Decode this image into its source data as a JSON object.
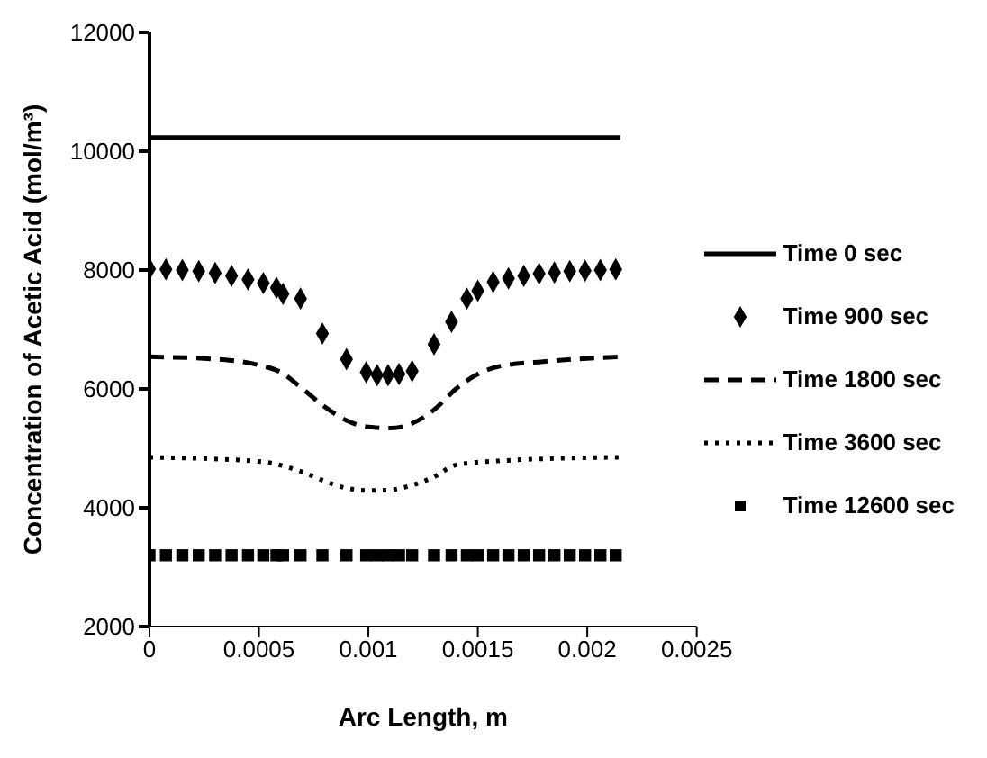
{
  "chart_data": {
    "type": "line",
    "xlabel": "Arc Length, m",
    "ylabel": "Concentration of Acetic Acid (mol/m³)",
    "xlim": [
      0,
      0.0025
    ],
    "xticks": [
      0,
      0.0005,
      0.001,
      0.0015,
      0.002,
      0.0025
    ],
    "ylim": [
      2000,
      12000
    ],
    "yticks": [
      2000,
      4000,
      6000,
      8000,
      10000,
      12000
    ],
    "grid": false,
    "legend": "right",
    "series": [
      {
        "name": "Time 0 sec",
        "line_style": "solid",
        "marker": "none",
        "color": "#000000",
        "x": [
          0,
          0.00215
        ],
        "values": [
          10230,
          10230
        ]
      },
      {
        "name": "Time 900 sec",
        "type": "scatter",
        "marker": "diamond",
        "color": "#000000",
        "x": [
          0,
          7.5e-05,
          0.00015,
          0.000225,
          0.0003,
          0.000375,
          0.00045,
          0.00052,
          0.00058,
          0.00061,
          0.00069,
          0.00079,
          0.0009,
          0.00099,
          0.00104,
          0.00109,
          0.00114,
          0.0012,
          0.0013,
          0.00138,
          0.00145,
          0.0015,
          0.00157,
          0.00164,
          0.00171,
          0.00178,
          0.00185,
          0.00192,
          0.00199,
          0.00206,
          0.00213
        ],
        "values": [
          8020,
          8010,
          8000,
          7980,
          7950,
          7900,
          7840,
          7780,
          7700,
          7600,
          7520,
          6930,
          6500,
          6280,
          6230,
          6230,
          6250,
          6300,
          6750,
          7130,
          7520,
          7650,
          7800,
          7860,
          7900,
          7940,
          7960,
          7980,
          7990,
          8000,
          8010
        ]
      },
      {
        "name": "Time 1800 sec",
        "line_style": "dashed",
        "marker": "none",
        "color": "#000000",
        "x": [
          0,
          0.0003,
          0.0005,
          0.0006,
          0.0007,
          0.0008,
          0.0009,
          0.001,
          0.0011,
          0.0012,
          0.0013,
          0.0014,
          0.0015,
          0.0016,
          0.0018,
          0.00215
        ],
        "values": [
          6540,
          6500,
          6400,
          6280,
          6000,
          5700,
          5470,
          5360,
          5340,
          5420,
          5650,
          6000,
          6250,
          6380,
          6460,
          6540
        ]
      },
      {
        "name": "Time 3600 sec",
        "line_style": "dotted",
        "marker": "none",
        "color": "#000000",
        "x": [
          0,
          0.0005,
          0.0007,
          0.0008,
          0.0009,
          0.001,
          0.0011,
          0.0012,
          0.0013,
          0.0014,
          0.0016,
          0.00215
        ],
        "values": [
          4850,
          4780,
          4600,
          4450,
          4330,
          4290,
          4300,
          4380,
          4520,
          4720,
          4790,
          4850
        ]
      },
      {
        "name": "Time 12600 sec",
        "type": "scatter",
        "marker": "square",
        "color": "#000000",
        "x": [
          0,
          7.5e-05,
          0.00015,
          0.000225,
          0.0003,
          0.000375,
          0.00045,
          0.00052,
          0.00058,
          0.00061,
          0.00069,
          0.00079,
          0.0009,
          0.00099,
          0.00104,
          0.00109,
          0.00114,
          0.0012,
          0.0013,
          0.00138,
          0.00145,
          0.0015,
          0.00157,
          0.00164,
          0.00171,
          0.00178,
          0.00185,
          0.00192,
          0.00199,
          0.00206,
          0.00213
        ],
        "values": [
          3200,
          3200,
          3200,
          3200,
          3200,
          3200,
          3200,
          3200,
          3200,
          3200,
          3200,
          3200,
          3200,
          3200,
          3200,
          3200,
          3200,
          3200,
          3200,
          3200,
          3200,
          3200,
          3200,
          3200,
          3200,
          3200,
          3200,
          3200,
          3200,
          3200,
          3200
        ]
      }
    ]
  }
}
